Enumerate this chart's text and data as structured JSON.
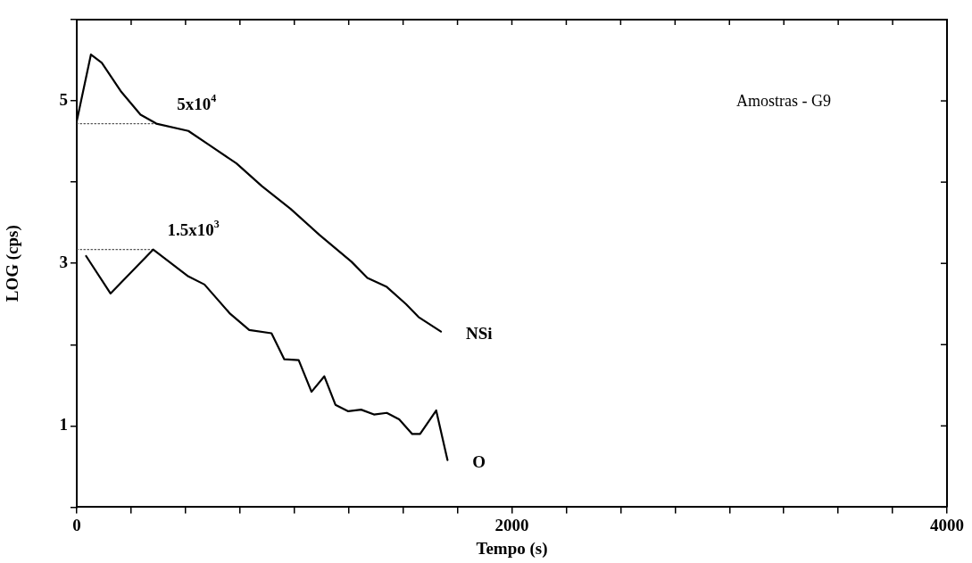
{
  "chart_data": {
    "type": "line",
    "xlabel": "Tempo (s)",
    "ylabel": "LOG (cps)",
    "xlim": [
      0,
      4000
    ],
    "xticks": [
      0,
      {
        "value": 250,
        "label": null
      },
      {
        "value": 500,
        "label": null
      },
      {
        "value": 750,
        "label": null
      },
      {
        "value": 1000,
        "label": null
      },
      {
        "value": 1250,
        "label": null
      },
      {
        "value": 1500,
        "label": null
      },
      {
        "value": 1750,
        "label": null
      },
      2000,
      {
        "value": 2250,
        "label": null
      },
      {
        "value": 2500,
        "label": null
      },
      {
        "value": 2750,
        "label": null
      },
      {
        "value": 3000,
        "label": null
      },
      {
        "value": 3250,
        "label": null
      },
      {
        "value": 3500,
        "label": null
      },
      {
        "value": 3750,
        "label": null
      },
      4000
    ],
    "ylim": [
      0,
      6
    ],
    "yticks": [
      {
        "value": 0,
        "label": null
      },
      1,
      {
        "value": 2,
        "label": null
      },
      3,
      {
        "value": 4,
        "label": null
      },
      5,
      {
        "value": 6,
        "label": null
      }
    ],
    "legend": false,
    "marker": "none",
    "series": [
      {
        "name": "NSi",
        "color": "#000000",
        "line_style": "solid",
        "x": [
          0,
          65,
          115,
          205,
          293,
          366,
          513,
          602,
          734,
          851,
          983,
          1116,
          1263,
          1336,
          1425,
          1513,
          1571,
          1674
        ],
        "values": [
          4.75,
          5.57,
          5.47,
          5.11,
          4.83,
          4.72,
          4.63,
          4.47,
          4.23,
          3.95,
          3.67,
          3.35,
          3.02,
          2.82,
          2.71,
          2.5,
          2.34,
          2.16
        ]
      },
      {
        "name": "O",
        "color": "#000000",
        "line_style": "solid",
        "x": [
          43,
          155,
          351,
          513,
          587,
          705,
          793,
          895,
          954,
          1020,
          1079,
          1138,
          1189,
          1248,
          1307,
          1366,
          1425,
          1482,
          1542,
          1578,
          1652,
          1704
        ],
        "values": [
          3.09,
          2.63,
          3.17,
          2.84,
          2.74,
          2.38,
          2.18,
          2.14,
          1.82,
          1.81,
          1.42,
          1.61,
          1.26,
          1.18,
          1.2,
          1.14,
          1.16,
          1.08,
          0.9,
          0.9,
          1.19,
          0.58
        ]
      },
      {
        "color": "#555555",
        "line_style": "dotted",
        "x": [
          0,
          366
        ],
        "values": [
          4.72,
          4.72
        ]
      },
      {
        "color": "#555555",
        "line_style": "dotted",
        "x": [
          0,
          351
        ],
        "values": [
          3.17,
          3.17
        ]
      }
    ],
    "annotations": [
      {
        "text": "5x10$^{4}$",
        "x": 366,
        "y": 4.72
      },
      {
        "text": "1.5x10$^{3}$",
        "x": 351,
        "y": 3.17
      },
      "Amostras - G9"
    ]
  }
}
